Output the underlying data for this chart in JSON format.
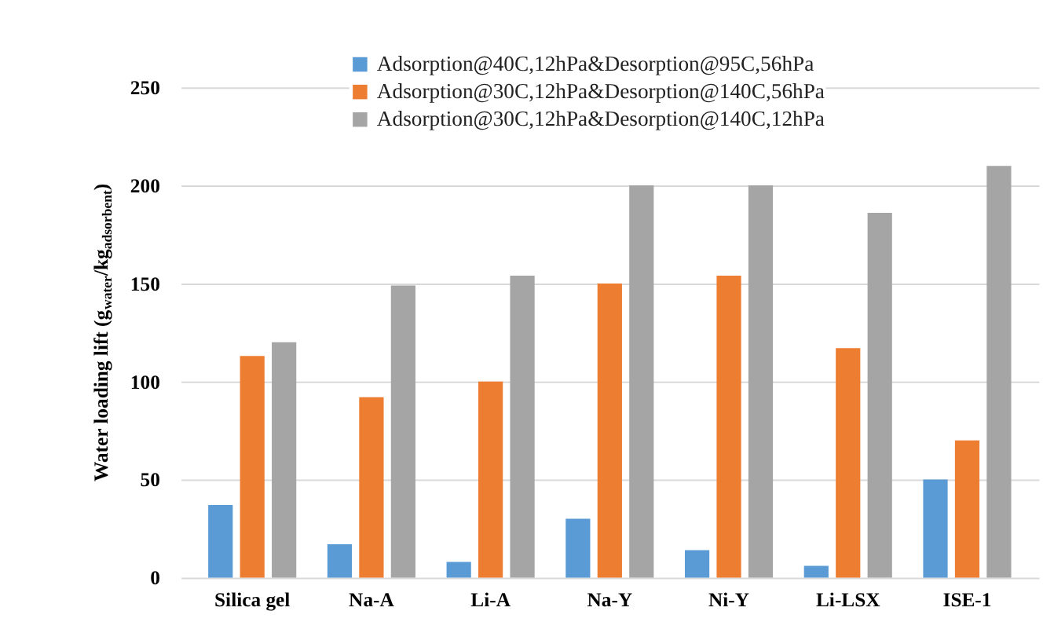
{
  "chart_data": {
    "type": "bar",
    "ylabel": "Water loading lift (g$_{water}$/kg$_{adsorbent}$)",
    "categories": [
      "Silica gel",
      "Na-A",
      "Li-A",
      "Na-Y",
      "Ni-Y",
      "Li-LSX",
      "ISE-1"
    ],
    "series": [
      {
        "name": "Adsorption@40C,12hPa&Desorption@95C,56hPa",
        "color": "#5b9bd5",
        "values": [
          37,
          17,
          8,
          30,
          14,
          6,
          50
        ]
      },
      {
        "name": "Adsorption@30C,12hPa&Desorption@140C,56hPa",
        "color": "#ed7d31",
        "values": [
          113,
          92,
          100,
          150,
          154,
          117,
          70
        ]
      },
      {
        "name": "Adsorption@30C,12hPa&Desorption@140C,12hPa",
        "color": "#a5a5a5",
        "values": [
          120,
          149,
          154,
          200,
          200,
          186,
          210
        ]
      }
    ],
    "ylim": [
      0,
      250
    ],
    "yticks": [
      0,
      50,
      100,
      150,
      200,
      250
    ],
    "grid": "y",
    "legend": "top"
  }
}
